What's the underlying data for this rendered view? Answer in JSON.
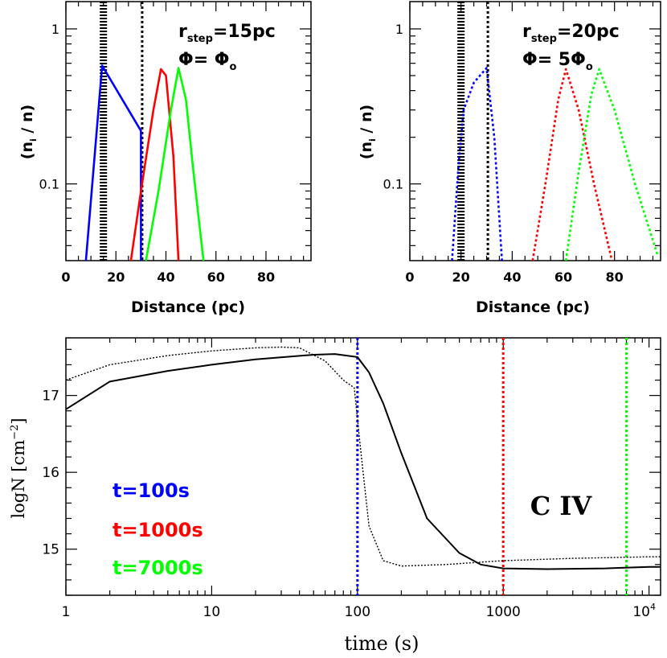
{
  "colors": {
    "blue": "#0000ff",
    "red": "#ff0000",
    "green": "#00ff00",
    "black": "#000000"
  },
  "chart_data": [
    {
      "type": "line",
      "title": "",
      "xlabel": "Distance (pc)",
      "ylabel": "(n_i / n)",
      "yscale": "log",
      "xlim": [
        0,
        98
      ],
      "ylim": [
        0.032,
        1.5
      ],
      "xticks": [
        0,
        20,
        40,
        60,
        80
      ],
      "xtick_labels": [
        "0",
        "20",
        "40",
        "60",
        "80"
      ],
      "yticks": [
        0.1,
        1
      ],
      "ytick_labels": [
        "0.1",
        "1"
      ],
      "annotations": {
        "rstep_label": "r_step=15pc",
        "phi_label": "Φ= Φ_o"
      },
      "vertical_lines": [
        {
          "x": 15,
          "style": "dense-dotted",
          "color": "#000000"
        },
        {
          "x": 30.5,
          "style": "dotted",
          "color": "#000000"
        }
      ],
      "series": [
        {
          "name": "t=100s",
          "color": "#0000ff",
          "style": "solid",
          "x": [
            8,
            14.5,
            30,
            30
          ],
          "y": [
            0.032,
            0.58,
            0.22,
            0.032
          ]
        },
        {
          "name": "t=1000s",
          "color": "#ff0000",
          "style": "solid",
          "x": [
            26,
            30,
            35,
            38,
            40,
            43,
            45
          ],
          "y": [
            0.032,
            0.09,
            0.3,
            0.55,
            0.5,
            0.15,
            0.032
          ]
        },
        {
          "name": "t=7000s",
          "color": "#00ff00",
          "style": "solid",
          "x": [
            32,
            37,
            42,
            45,
            48,
            51,
            55
          ],
          "y": [
            0.032,
            0.09,
            0.3,
            0.56,
            0.35,
            0.12,
            0.032
          ]
        }
      ]
    },
    {
      "type": "line",
      "title": "",
      "xlabel": "Distance (pc)",
      "ylabel": "(n_i / n)",
      "yscale": "log",
      "xlim": [
        0,
        98
      ],
      "ylim": [
        0.032,
        1.5
      ],
      "xticks": [
        0,
        20,
        40,
        60,
        80
      ],
      "xtick_labels": [
        "0",
        "20",
        "40",
        "60",
        "80"
      ],
      "yticks": [
        0.1,
        1
      ],
      "ytick_labels": [
        "0.1",
        "1"
      ],
      "annotations": {
        "rstep_label": "r_step=20pc",
        "phi_label": "Φ= 5Φ_o"
      },
      "vertical_lines": [
        {
          "x": 20,
          "style": "dense-dotted",
          "color": "#000000"
        },
        {
          "x": 30.5,
          "style": "dotted",
          "color": "#000000"
        }
      ],
      "series": [
        {
          "name": "t=100s",
          "color": "#0000ff",
          "style": "dotted",
          "x": [
            16.5,
            19,
            21,
            25,
            30,
            33,
            36
          ],
          "y": [
            0.032,
            0.13,
            0.3,
            0.45,
            0.56,
            0.2,
            0.032
          ]
        },
        {
          "name": "t=1000s",
          "color": "#ff0000",
          "style": "dotted",
          "x": [
            48,
            53,
            58,
            61,
            66,
            72,
            79
          ],
          "y": [
            0.032,
            0.1,
            0.35,
            0.55,
            0.3,
            0.1,
            0.032
          ]
        },
        {
          "name": "t=7000s",
          "color": "#00ff00",
          "style": "dotted",
          "x": [
            61,
            66,
            71,
            74,
            80,
            88,
            97
          ],
          "y": [
            0.032,
            0.12,
            0.38,
            0.55,
            0.3,
            0.1,
            0.034
          ]
        }
      ]
    },
    {
      "type": "line",
      "title": "",
      "xlabel": "time (s)",
      "ylabel": "logN [cm^-2]",
      "xscale": "log",
      "xlim": [
        1,
        12000
      ],
      "ylim": [
        14.4,
        17.75
      ],
      "xticks": [
        1,
        10,
        100,
        1000,
        10000
      ],
      "xtick_labels": [
        "1",
        "10",
        "100",
        "1000",
        "10^4"
      ],
      "yticks": [
        15,
        16,
        17
      ],
      "ytick_labels": [
        "15",
        "16",
        "17"
      ],
      "annotation": "C IV",
      "legend": [
        {
          "label": "t=100s",
          "color": "#0000ff"
        },
        {
          "label": "t=1000s",
          "color": "#ff0000"
        },
        {
          "label": "t=7000s",
          "color": "#00ff00"
        }
      ],
      "vertical_lines": [
        {
          "x": 100,
          "color": "#0000ff",
          "style": "dotted"
        },
        {
          "x": 1000,
          "color": "#ff0000",
          "style": "dotted"
        },
        {
          "x": 7000,
          "color": "#00ff00",
          "style": "dotted"
        }
      ],
      "series": [
        {
          "name": "rstep=15pc",
          "color": "#000000",
          "style": "solid",
          "x": [
            1,
            2,
            5,
            10,
            20,
            50,
            70,
            100,
            120,
            150,
            200,
            300,
            500,
            700,
            1000,
            2000,
            5000,
            10000,
            12000
          ],
          "y": [
            16.82,
            17.18,
            17.32,
            17.4,
            17.47,
            17.53,
            17.54,
            17.5,
            17.3,
            16.9,
            16.25,
            15.4,
            14.95,
            14.8,
            14.75,
            14.74,
            14.75,
            14.77,
            14.77
          ]
        },
        {
          "name": "rstep=20pc",
          "color": "#000000",
          "style": "dotted",
          "x": [
            1,
            2,
            5,
            10,
            20,
            30,
            40,
            60,
            80,
            95,
            105,
            120,
            150,
            200,
            400,
            1000,
            3000,
            10000,
            12000
          ],
          "y": [
            17.2,
            17.4,
            17.52,
            17.58,
            17.62,
            17.63,
            17.62,
            17.45,
            17.2,
            17.1,
            16.3,
            15.3,
            14.85,
            14.78,
            14.8,
            14.85,
            14.88,
            14.9,
            14.9
          ]
        }
      ]
    }
  ]
}
